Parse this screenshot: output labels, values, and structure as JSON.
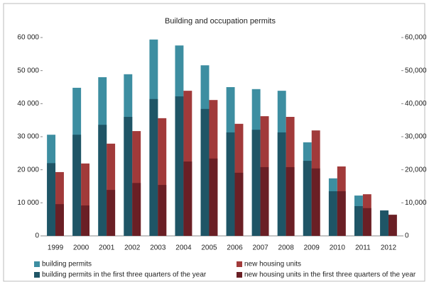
{
  "chart_data": {
    "type": "bar",
    "title": "Building and occupation permits",
    "categories": [
      "1999",
      "2000",
      "2001",
      "2002",
      "2003",
      "2004",
      "2005",
      "2006",
      "2007",
      "2008",
      "2009",
      "2010",
      "2011",
      "2012"
    ],
    "series": [
      {
        "name": "building permits",
        "color": "#3d8ea1",
        "values": [
          30600,
          44800,
          48000,
          48900,
          59400,
          57600,
          51600,
          45000,
          44400,
          43900,
          28300,
          17400,
          12200,
          null
        ]
      },
      {
        "name": "building permits in the first three quarters of the year",
        "color": "#1f5566",
        "values": [
          22000,
          30600,
          33600,
          36000,
          41400,
          42200,
          38400,
          31300,
          32100,
          31300,
          22700,
          13500,
          9000,
          7700
        ]
      },
      {
        "name": "new housing units",
        "color": "#a13a3a",
        "axis": "y2",
        "values": [
          19300,
          21900,
          27900,
          31700,
          35600,
          43900,
          41100,
          33900,
          36200,
          36000,
          31900,
          21000,
          12600,
          null
        ]
      },
      {
        "name": "new housing units in the first three quarters of the year",
        "color": "#6a1f25",
        "axis": "y2",
        "values": [
          9600,
          9200,
          13900,
          16000,
          15400,
          22500,
          23400,
          19100,
          20800,
          20800,
          20400,
          13500,
          8400,
          6400
        ]
      }
    ],
    "ylim": [
      0,
      60000
    ],
    "yticks": [
      0,
      {
        "value": 10000,
        "label": "10 000"
      },
      {
        "value": 20000,
        "label": "20 000"
      },
      {
        "value": 30000,
        "label": "30 000"
      },
      {
        "value": 40000,
        "label": "40 000"
      },
      {
        "value": 50000,
        "label": "50 000"
      },
      {
        "value": 60000,
        "label": "60 000"
      }
    ],
    "y2lim": [
      0,
      60000
    ],
    "y2ticks": [
      0,
      {
        "value": 10000,
        "label": "10,000"
      },
      {
        "value": 20000,
        "label": "20,000"
      },
      {
        "value": 30000,
        "label": "30,000"
      },
      {
        "value": 40000,
        "label": "40,000"
      },
      {
        "value": 50000,
        "label": "50,000"
      },
      {
        "value": 60000,
        "label": "60,000"
      }
    ],
    "grid": false,
    "legend": "bottom"
  }
}
